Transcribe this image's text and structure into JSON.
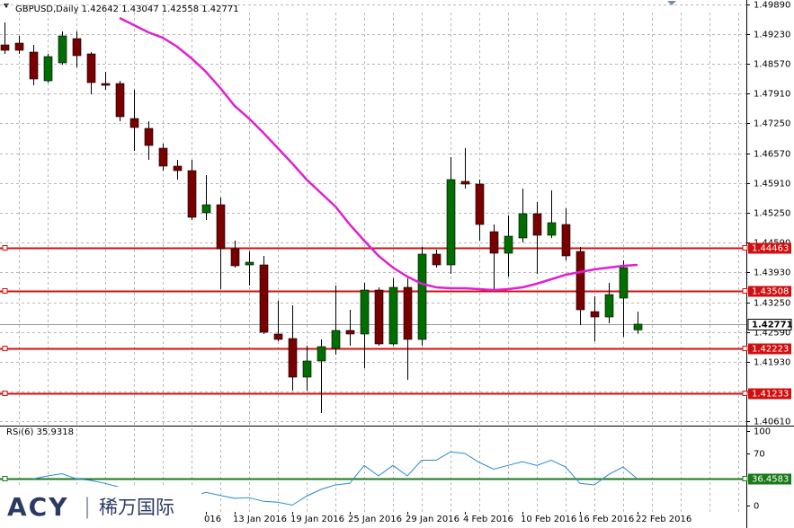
{
  "chart_data": {
    "type": "candlestick",
    "title": "GBPUSD,Daily  1.42642 1.43047 1.42558 1.42771",
    "categories": [
      null,
      null,
      null,
      null,
      null,
      null,
      null,
      null,
      null,
      null,
      null,
      null,
      null,
      null,
      "016",
      null,
      "13 Jan 2016",
      null,
      null,
      null,
      "19 Jan 2016",
      null,
      null,
      null,
      "25 Jan 2016",
      null,
      null,
      null,
      "29 Jan 2016",
      null,
      null,
      null,
      "4 Feb 2016",
      null,
      null,
      null,
      "10 Feb 2016",
      null,
      null,
      null,
      "16 Feb 2016",
      null,
      null,
      null,
      "22 Feb 2016"
    ],
    "open": [
      1.4899,
      1.4903,
      1.4883,
      1.4819,
      1.4859,
      1.4913,
      1.4879,
      1.4813,
      1.4813,
      1.4735,
      1.4713,
      1.4669,
      1.4629,
      1.4619,
      1.4525,
      1.4543,
      1.4445,
      1.4409,
      1.4409,
      1.4255,
      1.4245,
      1.4159,
      1.4195,
      1.4223,
      1.4263,
      1.4255,
      1.4353,
      1.4233,
      1.4359,
      1.4243,
      1.4433,
      1.4409,
      1.4595,
      1.4589,
      1.4483,
      1.4435,
      1.4469,
      1.4523,
      1.4475,
      1.4499,
      1.4439,
      1.4305,
      1.4293,
      1.4335,
      1.42642
    ],
    "high": [
      1.4949,
      1.4919,
      1.4899,
      1.4879,
      1.4929,
      1.4929,
      1.4883,
      1.4839,
      1.4819,
      1.4799,
      1.4729,
      1.4679,
      1.4643,
      1.4643,
      1.4609,
      1.4559,
      1.4463,
      1.4439,
      1.4429,
      1.4329,
      1.4319,
      1.4229,
      1.4243,
      1.4363,
      1.4309,
      1.4369,
      1.4359,
      1.4379,
      1.4379,
      1.4449,
      1.4443,
      1.4649,
      1.4669,
      1.4599,
      1.4499,
      1.4519,
      1.4579,
      1.4549,
      1.4575,
      1.4535,
      1.4449,
      1.4339,
      1.4369,
      1.4419,
      1.43047
    ],
    "low": [
      1.4879,
      1.4879,
      1.4809,
      1.4815,
      1.4855,
      1.4849,
      1.4789,
      1.4799,
      1.4729,
      1.4663,
      1.4643,
      1.4619,
      1.4599,
      1.4509,
      1.4509,
      1.4355,
      1.4403,
      1.4363,
      1.4255,
      1.4239,
      1.4129,
      1.4129,
      1.4079,
      1.4209,
      1.4229,
      1.4179,
      1.4229,
      1.4229,
      1.4153,
      1.4229,
      1.4403,
      1.4389,
      1.4579,
      1.4463,
      1.4353,
      1.4383,
      1.4459,
      1.4389,
      1.4469,
      1.4419,
      1.4275,
      1.4239,
      1.4279,
      1.4249,
      1.42558
    ],
    "close": [
      1.4887,
      1.4887,
      1.4823,
      1.4873,
      1.4919,
      1.4875,
      1.4815,
      1.4809,
      1.4739,
      1.4715,
      1.4675,
      1.4629,
      1.4619,
      1.4515,
      1.4543,
      1.4445,
      1.4407,
      1.4415,
      1.4259,
      1.4243,
      1.4159,
      1.4195,
      1.4227,
      1.4263,
      1.4255,
      1.4353,
      1.4233,
      1.4359,
      1.4243,
      1.4433,
      1.4409,
      1.4599,
      1.4589,
      1.4499,
      1.4435,
      1.4473,
      1.4523,
      1.4475,
      1.4503,
      1.4429,
      1.4309,
      1.4293,
      1.4343,
      1.4403,
      1.42771
    ],
    "up_color": "#006e00",
    "down_color": "#7a0000",
    "ylim": [
      1.4053,
      1.4999
    ],
    "yticks": [
      {
        "value": 1.4989,
        "label": "1.49890"
      },
      {
        "value": 1.4923,
        "label": "1.49230"
      },
      {
        "value": 1.4857,
        "label": "1.48570"
      },
      {
        "value": 1.4791,
        "label": "1.47910"
      },
      {
        "value": 1.4725,
        "label": "1.47250"
      },
      {
        "value": 1.4657,
        "label": "1.46570"
      },
      {
        "value": 1.4591,
        "label": "1.45910"
      },
      {
        "value": 1.4525,
        "label": "1.45250"
      },
      {
        "value": 1.4459,
        "label": "1.44590"
      },
      {
        "value": 1.4393,
        "label": "1.43930"
      },
      {
        "value": 1.4325,
        "label": "1.43250"
      },
      {
        "value": 1.4259,
        "label": "1.42590"
      },
      {
        "value": 1.4193,
        "label": "1.41930"
      },
      {
        "value": 1.4127,
        "label": "1.41270"
      },
      {
        "value": 1.4061,
        "label": "1.40610"
      }
    ],
    "grid": true,
    "ma": {
      "color": "#e020d0",
      "values": [
        null,
        null,
        null,
        null,
        null,
        null,
        null,
        null,
        1.4959,
        1.4943,
        1.4927,
        1.4915,
        1.4895,
        1.4869,
        1.4839,
        1.4803,
        1.4763,
        1.4735,
        1.4703,
        1.4669,
        1.4635,
        1.4599,
        1.4569,
        1.4539,
        1.4499,
        1.4463,
        1.4429,
        1.4403,
        1.4383,
        1.4367,
        1.4359,
        1.4357,
        1.4357,
        1.4355,
        1.4353,
        1.4355,
        1.4359,
        1.4367,
        1.4377,
        1.4387,
        1.4393,
        1.4399,
        1.4403,
        1.4407,
        1.4409
      ]
    },
    "levels": [
      1.44463,
      1.43508,
      1.42223,
      1.41233
    ],
    "level_color": "#d01010",
    "current_price": 1.42771,
    "rsi": {
      "label": "RSI(6) 35.9318",
      "color": "#2a8ad0",
      "values": [
        null,
        null,
        36,
        40,
        43,
        36,
        34,
        30,
        25,
        20,
        15,
        12,
        10,
        12,
        18,
        14,
        10,
        11,
        6,
        5,
        1,
        13,
        22,
        28,
        30,
        54,
        40,
        54,
        40,
        61,
        61,
        72,
        70,
        58,
        49,
        54,
        59,
        54,
        61,
        52,
        30,
        28,
        42,
        52,
        35.9318
      ],
      "ylim": [
        -8,
        106
      ],
      "yticks": [
        100,
        70,
        0
      ],
      "level": 36.4583,
      "level_color": "#1a7a1a"
    },
    "logo": {
      "brand": "ACY",
      "sep": "|",
      "cn": "稀万国际"
    }
  }
}
